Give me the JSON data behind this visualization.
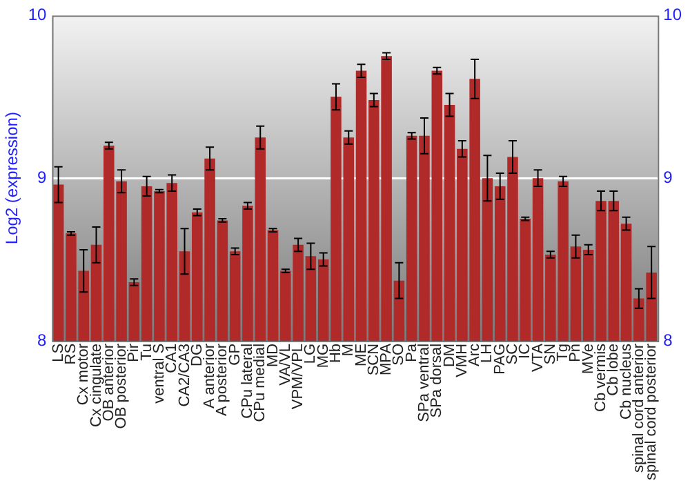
{
  "chart_data": {
    "type": "bar",
    "ylabel": "Log2 (expression)",
    "categories": [
      "LS",
      "RS",
      "Cx motor",
      "Cx cingulate",
      "OB anterior",
      "OB posterior",
      "Pir",
      "Tu",
      "ventral S",
      "CA1",
      "CA2/CA3",
      "DG",
      "A anterior",
      "A posterior",
      "GP",
      "CPu lateral",
      "CPu medial",
      "MD",
      "VA/VL",
      "VPM/VPL",
      "LG",
      "MG",
      "Hb",
      "M",
      "ME",
      "SCN",
      "MPA",
      "SO",
      "Pa",
      "SPa ventral",
      "SPa dorsal",
      "DM",
      "VMH",
      "Arc",
      "LH",
      "PAG",
      "SC",
      "IC",
      "VTA",
      "SN",
      "Tg",
      "Pn",
      "MVe",
      "Cb vermis",
      "Cb lobe",
      "Cb nucleus",
      "spinal cord anterior",
      "spinal cord posterior"
    ],
    "values": [
      8.96,
      8.66,
      8.43,
      8.59,
      9.2,
      8.98,
      8.36,
      8.95,
      8.92,
      8.97,
      8.55,
      8.79,
      9.12,
      8.74,
      8.55,
      8.83,
      9.25,
      8.68,
      8.43,
      8.59,
      8.52,
      8.5,
      9.5,
      9.25,
      9.66,
      9.48,
      9.75,
      8.37,
      9.26,
      9.26,
      9.66,
      9.45,
      9.18,
      9.61,
      9.0,
      8.95,
      9.13,
      8.75,
      9.0,
      8.53,
      8.98,
      8.58,
      8.56,
      8.86,
      8.86,
      8.72,
      8.26,
      8.42
    ],
    "errors": [
      0.11,
      0.01,
      0.13,
      0.11,
      0.02,
      0.07,
      0.02,
      0.06,
      0.01,
      0.05,
      0.14,
      0.02,
      0.07,
      0.01,
      0.02,
      0.02,
      0.07,
      0.01,
      0.01,
      0.04,
      0.08,
      0.04,
      0.08,
      0.04,
      0.04,
      0.04,
      0.02,
      0.11,
      0.02,
      0.11,
      0.02,
      0.07,
      0.05,
      0.12,
      0.14,
      0.08,
      0.1,
      0.01,
      0.05,
      0.02,
      0.03,
      0.07,
      0.03,
      0.06,
      0.06,
      0.04,
      0.06,
      0.16
    ],
    "color": "#b02a2a",
    "ylim": [
      8,
      10
    ],
    "yticks": [
      8,
      9,
      10
    ],
    "y2lim": [
      8,
      10
    ],
    "y2ticks": [
      8,
      9,
      10
    ],
    "grid": "y",
    "legend": false
  }
}
